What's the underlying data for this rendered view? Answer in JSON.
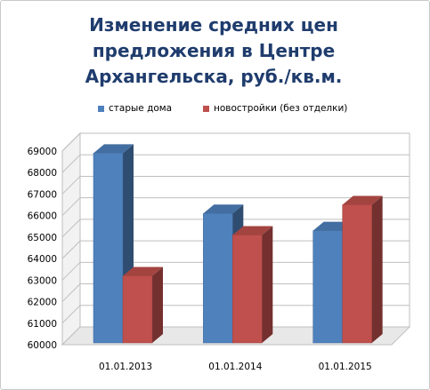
{
  "chart_data": {
    "type": "bar",
    "title_lines": [
      "Изменение средних цен",
      "предложения в Центре",
      "Архангельска, руб./кв.м."
    ],
    "categories": [
      "01.01.2013",
      "01.01.2014",
      "01.01.2015"
    ],
    "series": [
      {
        "name": "старые дома",
        "values": [
          68900,
          66100,
          65300
        ],
        "color": "#4f81bd"
      },
      {
        "name": "новостройки (без отделки)",
        "values": [
          63200,
          65100,
          66500
        ],
        "color": "#c0504d"
      }
    ],
    "ylim": [
      60000,
      69000
    ],
    "yticks": [
      60000,
      61000,
      62000,
      63000,
      64000,
      65000,
      66000,
      67000,
      68000,
      69000
    ],
    "grid": true,
    "legend_position": "top",
    "style": "3d-clustered-column"
  }
}
